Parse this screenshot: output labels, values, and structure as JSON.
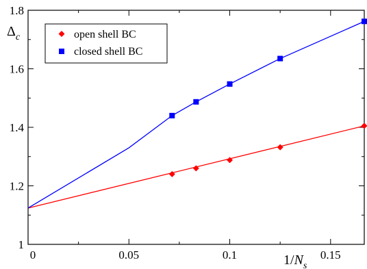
{
  "chart_data": {
    "type": "scatter",
    "title": "",
    "xlabel": {
      "prefix": "1/",
      "main": "N",
      "sub": "s"
    },
    "ylabel": {
      "main": "Δ",
      "sub": "c"
    },
    "xlim": [
      0,
      0.1667
    ],
    "ylim": [
      1.0,
      1.8
    ],
    "xticks": [
      0,
      0.05,
      0.1,
      0.15
    ],
    "xtick_labels": [
      "0",
      "0.05",
      "0.1",
      "0.15"
    ],
    "yticks": [
      1.0,
      1.2,
      1.4,
      1.6,
      1.8
    ],
    "ytick_labels": [
      "1",
      "1.2",
      "1.4",
      "1.6",
      "1.8"
    ],
    "grid": false,
    "legend_position": "top-left",
    "series": [
      {
        "name": "open shell BC",
        "color": "#ff0000",
        "marker": "diamond",
        "x": [
          0.0714,
          0.0833,
          0.1,
          0.125,
          0.1667
        ],
        "y": [
          1.24,
          1.26,
          1.288,
          1.332,
          1.405
        ],
        "fit_line": [
          [
            0,
            1.124
          ],
          [
            0.1667,
            1.405
          ]
        ]
      },
      {
        "name": "closed shell BC",
        "color": "#0000ff",
        "marker": "square",
        "x": [
          0.0714,
          0.0833,
          0.1,
          0.125,
          0.1667
        ],
        "y": [
          1.44,
          1.487,
          1.548,
          1.635,
          1.762
        ],
        "fit_curve": [
          [
            0,
            1.124
          ],
          [
            0.05,
            1.33
          ],
          [
            0.0714,
            1.44
          ],
          [
            0.0833,
            1.487
          ],
          [
            0.1,
            1.548
          ],
          [
            0.125,
            1.635
          ],
          [
            0.1667,
            1.762
          ]
        ]
      }
    ]
  }
}
